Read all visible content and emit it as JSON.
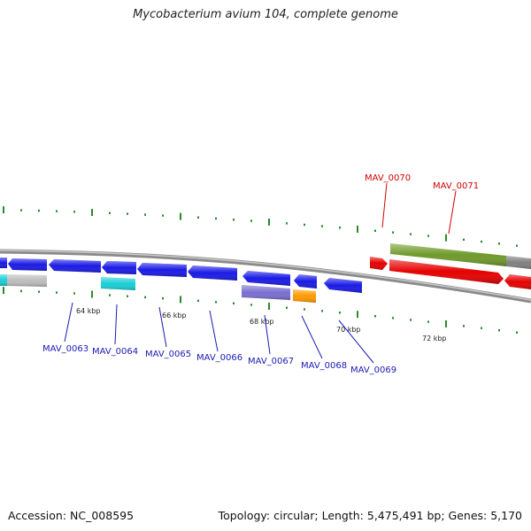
{
  "title": "Mycobacterium avium 104, complete genome",
  "footer": {
    "accession": "Accession: NC_008595",
    "summary": "Topology: circular; Length: 5,475,491 bp; Genes: 5,170"
  },
  "colors": {
    "backbone": "#8a8a8a",
    "forward_gene": "#1a1ae6",
    "highlight_gene": "#e60000",
    "cyan": "#19cfd6",
    "olive": "#6f9a2a",
    "gray": "#bdbdbd",
    "purple": "#7a6ed0",
    "orange": "#ff9900",
    "tick": "#2a8a2a"
  },
  "scale_labels": [
    "64 kbp",
    "66 kbp",
    "68 kbp",
    "70 kbp",
    "72 kbp"
  ],
  "gene_labels": [
    {
      "name": "MAV_0063",
      "color": "blue"
    },
    {
      "name": "MAV_0064",
      "color": "blue"
    },
    {
      "name": "MAV_0065",
      "color": "blue"
    },
    {
      "name": "MAV_0066",
      "color": "blue"
    },
    {
      "name": "MAV_0067",
      "color": "blue"
    },
    {
      "name": "MAV_0068",
      "color": "blue"
    },
    {
      "name": "MAV_0069",
      "color": "blue"
    },
    {
      "name": "MAV_0070",
      "color": "red"
    },
    {
      "name": "MAV_0071",
      "color": "red"
    }
  ]
}
